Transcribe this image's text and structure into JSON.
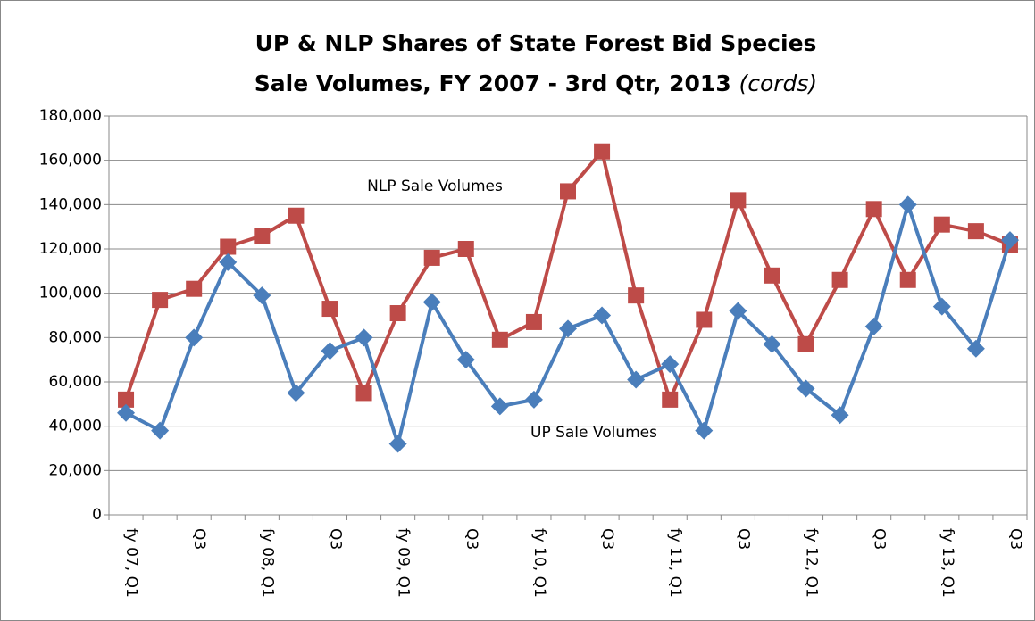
{
  "chart_data": {
    "type": "line",
    "title_lines": [
      "UP & NLP Shares of State Forest Bid Species",
      "Sale Volumes, FY 2007 - 3rd Qtr, 2013"
    ],
    "title_unit": "(cords)",
    "categories": [
      "fy 07, Q1",
      null,
      "Q3",
      null,
      "fy 08, Q1",
      null,
      "Q3",
      null,
      "fy 09, Q1",
      null,
      "Q3",
      null,
      "fy 10, Q1",
      null,
      "Q3",
      null,
      "fy 11, Q1",
      null,
      "Q3",
      null,
      "fy 12, Q1",
      null,
      "Q3",
      null,
      "fy 13, Q1",
      null,
      "Q3"
    ],
    "series": [
      {
        "name": "NLP Sale Volumes",
        "color": "#be4b48",
        "marker": "square",
        "values": [
          52000,
          97000,
          102000,
          121000,
          126000,
          135000,
          93000,
          55000,
          91000,
          116000,
          120000,
          79000,
          87000,
          146000,
          164000,
          99000,
          52000,
          88000,
          142000,
          108000,
          77000,
          106000,
          138000,
          106000,
          131000,
          128000,
          122000
        ]
      },
      {
        "name": "UP Sale Volumes",
        "color": "#4a7ebb",
        "marker": "diamond",
        "values": [
          46000,
          38000,
          80000,
          114000,
          99000,
          55000,
          74000,
          80000,
          32000,
          96000,
          70000,
          49000,
          52000,
          84000,
          90000,
          61000,
          68000,
          38000,
          92000,
          77000,
          57000,
          45000,
          85000,
          140000,
          94000,
          75000,
          124000
        ]
      }
    ],
    "ylim": [
      0,
      180000
    ],
    "yticks": [
      0,
      {
        "value": 20000,
        "label": "20,000"
      },
      {
        "value": 40000,
        "label": "40,000"
      },
      {
        "value": 60000,
        "label": "60,000"
      },
      {
        "value": 80000,
        "label": "80,000"
      },
      {
        "value": 100000,
        "label": "100,000"
      },
      {
        "value": 120000,
        "label": "120,000"
      },
      {
        "value": 140000,
        "label": "140,000"
      },
      {
        "value": 160000,
        "label": "160,000"
      },
      {
        "value": 180000,
        "label": "180,000"
      }
    ],
    "grid": true
  }
}
